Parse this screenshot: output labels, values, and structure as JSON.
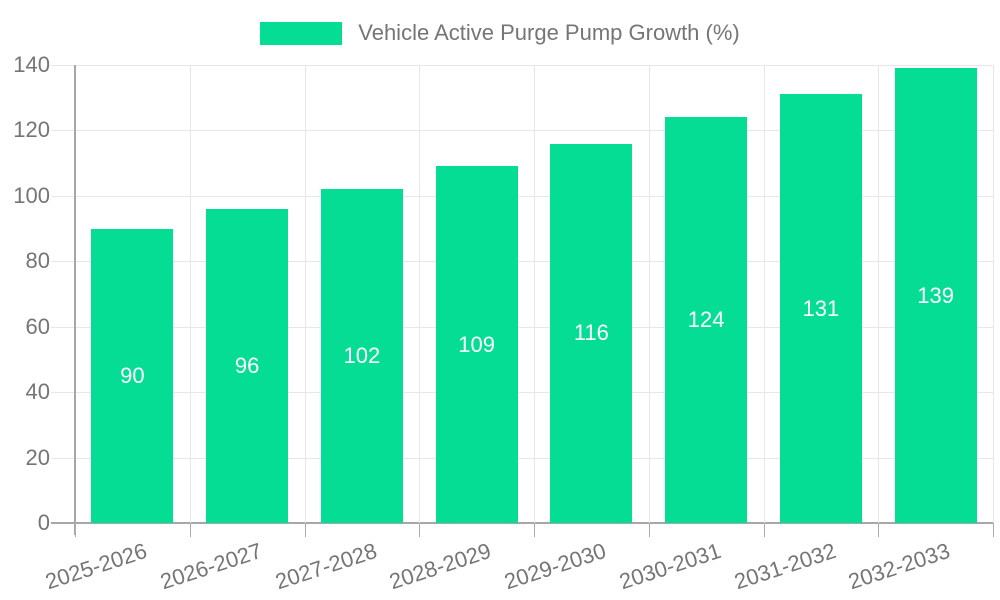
{
  "chart_data": {
    "type": "bar",
    "title": "",
    "legend_label": "Vehicle Active Purge Pump Growth (%)",
    "legend_position": "top",
    "categories": [
      "2025-2026",
      "2026-2027",
      "2027-2028",
      "2028-2029",
      "2029-2030",
      "2030-2031",
      "2031-2032",
      "2032-2033"
    ],
    "series": [
      {
        "name": "Vehicle Active Purge Pump Growth (%)",
        "values": [
          90,
          96,
          102,
          109,
          116,
          124,
          131,
          139
        ]
      }
    ],
    "xlabel": "",
    "ylabel": "",
    "ylim": [
      0,
      140
    ],
    "yticks": [
      0,
      20,
      40,
      60,
      80,
      100,
      120,
      140
    ],
    "grid": true,
    "x_label_rotation_deg": -18,
    "value_labels": true,
    "colors": {
      "bar": "#06DD94",
      "value_label": "#FFFFFF",
      "tick_text": "#757575",
      "legend_text": "#757575",
      "gridline": "#E7E7E7",
      "axis": "#A7A7A7"
    }
  }
}
